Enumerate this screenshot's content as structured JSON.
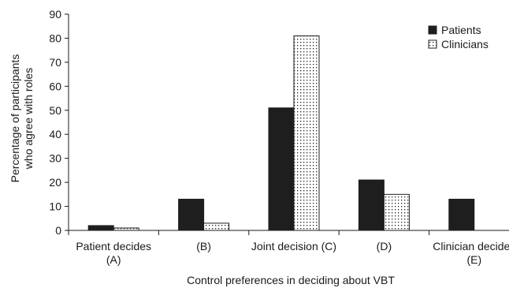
{
  "chart_data": {
    "type": "bar",
    "categories": [
      [
        "Patient decides",
        "(A)"
      ],
      [
        "(B)"
      ],
      [
        "Joint decision (C)"
      ],
      [
        "(D)"
      ],
      [
        "Clinician decides",
        "(E)"
      ]
    ],
    "series": [
      {
        "name": "Patients",
        "values": [
          2,
          13,
          51,
          21,
          13
        ],
        "color": "#1e1e1e",
        "pattern": "solid"
      },
      {
        "name": "Clinicians",
        "values": [
          1,
          3,
          81,
          15,
          0
        ],
        "color": "#ffffff",
        "pattern": "dotted"
      }
    ],
    "ylim": [
      0,
      90
    ],
    "yticks": [
      0,
      10,
      20,
      30,
      40,
      50,
      60,
      70,
      80,
      90
    ],
    "ylabel": [
      "Percentage of participants",
      "who agree with roles"
    ],
    "xlabel": "Control preferences in deciding about VBT",
    "legend_position": "top-right",
    "grid": false
  }
}
